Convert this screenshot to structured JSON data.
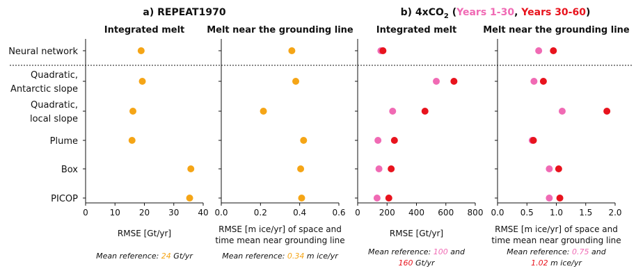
{
  "figure": {
    "group_a_title": "a) REPEAT1970",
    "group_b_prefix": "b) 4xCO",
    "group_b_sub": "2",
    "group_b_open": " (",
    "group_b_years1": "Years 1-30",
    "group_b_comma": ", ",
    "group_b_years2": "Years 30-60",
    "group_b_close": ")",
    "colors": {
      "repeat": "#f5a516",
      "years1_30": "#f06ab4",
      "years30_60": "#e8131d"
    },
    "separator_style": "dotted",
    "mean_reference_prefix": "Mean reference: ",
    "mean_reference_and": " and"
  },
  "chart_data": [
    {
      "type": "scatter",
      "title": "Integrated melt",
      "xlabel": "RMSE [Gt/yr]",
      "xlim": [
        0,
        40
      ],
      "xticks": [
        "0",
        "10",
        "20",
        "30",
        "40"
      ],
      "categories": [
        "Neural network",
        "Quadratic, Antarctic slope",
        "Quadratic, local slope",
        "Plume",
        "Box",
        "PICOP"
      ],
      "category_lines": [
        [
          "Neural network"
        ],
        [
          "Quadratic,",
          "Antarctic slope"
        ],
        [
          "Quadratic,",
          "local slope"
        ],
        [
          "Plume"
        ],
        [
          "Box"
        ],
        [
          "PICOP"
        ]
      ],
      "series": [
        {
          "color": "#f5a516",
          "values": [
            18.9,
            19.3,
            16.1,
            15.8,
            35.8,
            35.4
          ]
        }
      ],
      "mean_reference": [
        {
          "value": "24",
          "color": "#f5a516"
        }
      ],
      "mean_reference_unit": "Gt/yr"
    },
    {
      "type": "scatter",
      "title": "Melt near the grounding line",
      "xlabel_lines": [
        "RMSE [m ice/yr] of space and",
        "time mean near grounding line"
      ],
      "xlim": [
        0,
        0.6
      ],
      "xticks": [
        "0.0",
        "0.2",
        "0.4",
        "0.6"
      ],
      "categories": [
        "Neural network",
        "Quadratic, Antarctic slope",
        "Quadratic, local slope",
        "Plume",
        "Box",
        "PICOP"
      ],
      "series": [
        {
          "color": "#f5a516",
          "values": [
            0.36,
            0.38,
            0.215,
            0.42,
            0.405,
            0.41
          ]
        }
      ],
      "mean_reference": [
        {
          "value": "0.34",
          "color": "#f5a516"
        }
      ],
      "mean_reference_unit": "m ice/yr"
    },
    {
      "type": "scatter",
      "title": "Integrated melt",
      "xlabel": "RMSE [Gt/yr]",
      "xlim": [
        0,
        800
      ],
      "xticks": [
        "0",
        "200",
        "400",
        "600",
        "800"
      ],
      "categories": [
        "Neural network",
        "Quadratic, Antarctic slope",
        "Quadratic, local slope",
        "Plume",
        "Box",
        "PICOP"
      ],
      "series": [
        {
          "name": "Years 1-30",
          "color": "#f06ab4",
          "values": [
            158,
            535,
            238,
            138,
            145,
            132
          ]
        },
        {
          "name": "Years 30-60",
          "color": "#e8131d",
          "values": [
            172,
            655,
            458,
            250,
            228,
            212
          ]
        }
      ],
      "mean_reference": [
        {
          "value": "100",
          "color": "#f06ab4"
        },
        {
          "value": "160",
          "color": "#e8131d"
        }
      ],
      "mean_reference_unit": "Gt/yr"
    },
    {
      "type": "scatter",
      "title": "Melt near the grounding line",
      "xlabel_lines": [
        "RMSE [m ice/yr] of space and",
        "time mean near grounding line"
      ],
      "xlim": [
        0,
        2.0
      ],
      "xticks": [
        "0.0",
        "0.5",
        "1.0",
        "1.5",
        "2.0"
      ],
      "categories": [
        "Neural network",
        "Quadratic, Antarctic slope",
        "Quadratic, local slope",
        "Plume",
        "Box",
        "PICOP"
      ],
      "series": [
        {
          "name": "Years 1-30",
          "color": "#f06ab4",
          "values": [
            0.7,
            0.62,
            1.1,
            0.59,
            0.88,
            0.88
          ]
        },
        {
          "name": "Years 30-60",
          "color": "#e8131d",
          "values": [
            0.95,
            0.78,
            1.86,
            0.61,
            1.04,
            1.06
          ]
        }
      ],
      "mean_reference": [
        {
          "value": "0.75",
          "color": "#f06ab4"
        },
        {
          "value": "1.02",
          "color": "#e8131d"
        }
      ],
      "mean_reference_unit": "m ice/yr"
    }
  ]
}
